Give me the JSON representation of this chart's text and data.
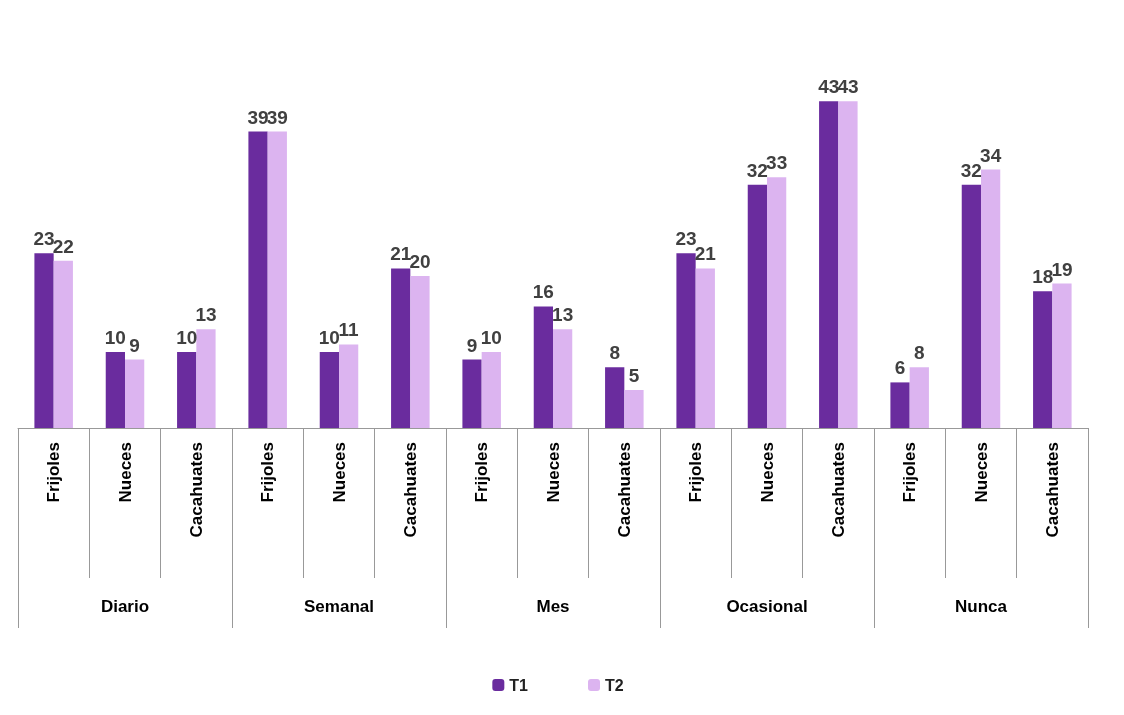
{
  "chart_data": {
    "type": "bar",
    "categories": [
      "Frijoles",
      "Nueces",
      "Cacahuates",
      "Frijoles",
      "Nueces",
      "Cacahuates",
      "Frijoles",
      "Nueces",
      "Cacahuates",
      "Frijoles",
      "Nueces",
      "Cacahuates",
      "Frijoles",
      "Nueces",
      "Cacahuates"
    ],
    "annotations": [
      "Diario",
      "Semanal",
      "Mes",
      "Ocasional",
      "Nunca"
    ],
    "series": [
      {
        "name": "T1",
        "color": "#6a2c9e",
        "values": [
          23,
          10,
          10,
          39,
          10,
          21,
          9,
          16,
          8,
          23,
          32,
          43,
          6,
          32,
          18
        ]
      },
      {
        "name": "T2",
        "color": "#dcb4f0",
        "values": [
          22,
          9,
          13,
          39,
          11,
          20,
          10,
          13,
          5,
          21,
          33,
          43,
          8,
          34,
          19
        ]
      }
    ],
    "data_labels": true,
    "grid": false,
    "legend": "bottom"
  }
}
